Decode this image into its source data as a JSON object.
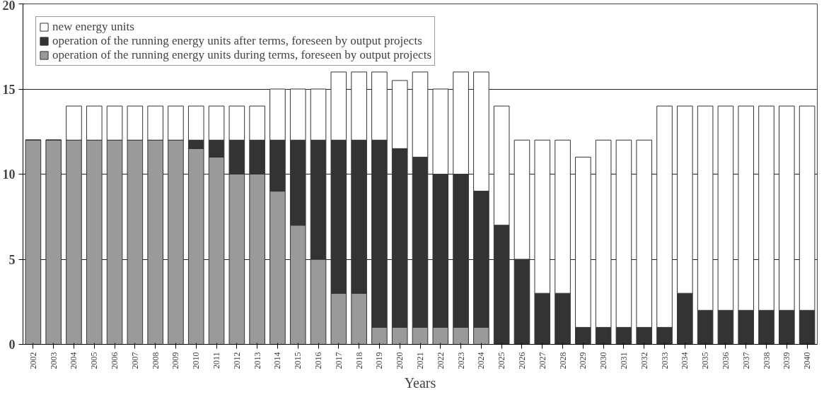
{
  "chart_data": {
    "type": "bar",
    "stacked": true,
    "xlabel": "Years",
    "categories": [
      "2002",
      "2003",
      "2004",
      "2005",
      "2006",
      "2007",
      "2008",
      "2009",
      "2010",
      "2011",
      "2012",
      "2013",
      "2014",
      "2015",
      "2016",
      "2017",
      "2018",
      "2019",
      "2020",
      "2021",
      "2022",
      "2023",
      "2024",
      "2025",
      "2026",
      "2027",
      "2028",
      "2029",
      "2030",
      "2031",
      "2032",
      "2033",
      "2034",
      "2035",
      "2036",
      "2037",
      "2038",
      "2039",
      "2040"
    ],
    "series": [
      {
        "name": "operation of the running energy units during terms, foreseen by output projects",
        "color": "#9a9a9a",
        "values": [
          12,
          12,
          12,
          12,
          12,
          12,
          12,
          12,
          11.5,
          11,
          10,
          10,
          9,
          7,
          5,
          3,
          3,
          1,
          1,
          1,
          1,
          1,
          1,
          0,
          0,
          0,
          0,
          0,
          0,
          0,
          0,
          0,
          0,
          0,
          0,
          0,
          0,
          0,
          0
        ]
      },
      {
        "name": "operation of the running energy units after terms, foreseen by output projects",
        "color": "#333333",
        "values": [
          0,
          0,
          0,
          0,
          0,
          0,
          0,
          0,
          0.5,
          1,
          2,
          2,
          3,
          5,
          7,
          9,
          9,
          11,
          10.5,
          10,
          9,
          9,
          8,
          7,
          5,
          3,
          3,
          1,
          1,
          1,
          1,
          1,
          3,
          2,
          2,
          2,
          2,
          2,
          2
        ]
      },
      {
        "name": "new energy units",
        "color": "#ffffff",
        "values": [
          0,
          0,
          2,
          2,
          2,
          2,
          2,
          2,
          2,
          2,
          2,
          2,
          3,
          3,
          3,
          4,
          4,
          4,
          4,
          5,
          5,
          6,
          7,
          7,
          7,
          9,
          9,
          10,
          11,
          11,
          11,
          13,
          11,
          12,
          12,
          12,
          12,
          12,
          12
        ]
      }
    ],
    "ylim": [
      0,
      20
    ],
    "yticks": [
      0,
      5,
      10,
      15,
      20
    ],
    "grid": "y",
    "legend": "top left"
  }
}
